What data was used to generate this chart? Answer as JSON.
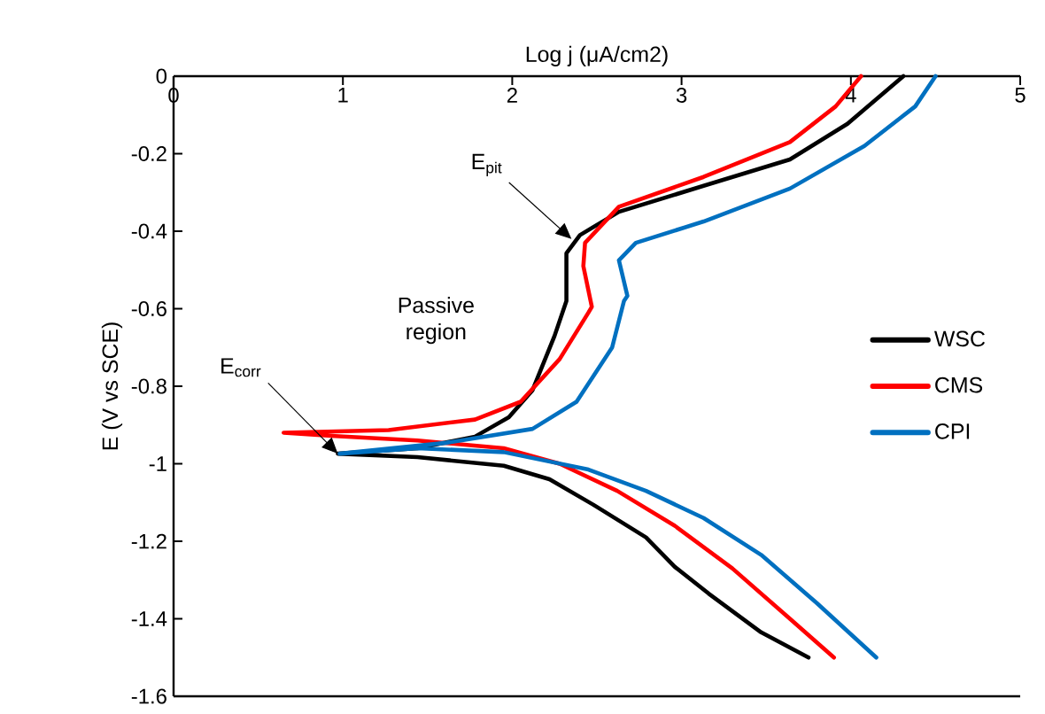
{
  "chart_data": {
    "type": "line",
    "xlabel": "Log j (μA/cm2)",
    "ylabel": "E (V vs SCE)",
    "xlim": [
      0,
      5
    ],
    "xticks": [
      0,
      1,
      2,
      3,
      4,
      5
    ],
    "ylim": [
      -1.6,
      0
    ],
    "yticks": [
      -1.6,
      -1.4,
      -1.2,
      -1,
      -0.8,
      -0.6,
      -0.4,
      -0.2,
      0
    ],
    "grid": false,
    "legend": "right",
    "marker": "none",
    "line_style": "solid",
    "series": [
      {
        "name": "WSC",
        "color": "#000000",
        "x": [
          3.75,
          3.47,
          3.16,
          2.96,
          2.79,
          2.48,
          2.22,
          1.95,
          1.44,
          0.97,
          1.44,
          1.78,
          1.98,
          2.12,
          2.25,
          2.32,
          2.32,
          2.4,
          2.63,
          3.13,
          3.64,
          3.98,
          4.31
        ],
        "values": [
          -1.5,
          -1.435,
          -1.335,
          -1.266,
          -1.19,
          -1.106,
          -1.04,
          -1.005,
          -0.983,
          -0.974,
          -0.96,
          -0.93,
          -0.88,
          -0.81,
          -0.67,
          -0.58,
          -0.457,
          -0.41,
          -0.35,
          -0.283,
          -0.215,
          -0.123,
          0
        ]
      },
      {
        "name": "CMS",
        "color": "#ff0000",
        "x": [
          3.9,
          3.64,
          3.3,
          2.96,
          2.62,
          2.28,
          1.95,
          1.44,
          0.93,
          0.65,
          1.27,
          1.78,
          2.05,
          2.28,
          2.45,
          2.47,
          2.42,
          2.43,
          2.63,
          3.13,
          3.64,
          3.91,
          4.06
        ],
        "values": [
          -1.5,
          -1.4,
          -1.27,
          -1.16,
          -1.07,
          -1.0,
          -0.96,
          -0.94,
          -0.928,
          -0.92,
          -0.913,
          -0.886,
          -0.84,
          -0.73,
          -0.61,
          -0.595,
          -0.49,
          -0.43,
          -0.337,
          -0.26,
          -0.17,
          -0.078,
          0
        ]
      },
      {
        "name": "CPI",
        "color": "#0070c0",
        "x": [
          4.15,
          3.8,
          3.47,
          3.13,
          2.79,
          2.45,
          1.95,
          1.44,
          0.98,
          1.61,
          2.12,
          2.38,
          2.59,
          2.66,
          2.68,
          2.63,
          2.73,
          3.13,
          3.64,
          4.08,
          4.38,
          4.5
        ],
        "values": [
          -1.5,
          -1.36,
          -1.235,
          -1.14,
          -1.07,
          -1.015,
          -0.97,
          -0.96,
          -0.974,
          -0.946,
          -0.91,
          -0.84,
          -0.7,
          -0.58,
          -0.567,
          -0.475,
          -0.43,
          -0.375,
          -0.29,
          -0.18,
          -0.078,
          0
        ]
      }
    ],
    "annotations": [
      {
        "text": "E$_{pit}$",
        "x": 2.35,
        "y": -0.42
      },
      "Passive region",
      {
        "text": "E$_{corr}$",
        "x": 0.97,
        "y": -0.974
      }
    ]
  }
}
